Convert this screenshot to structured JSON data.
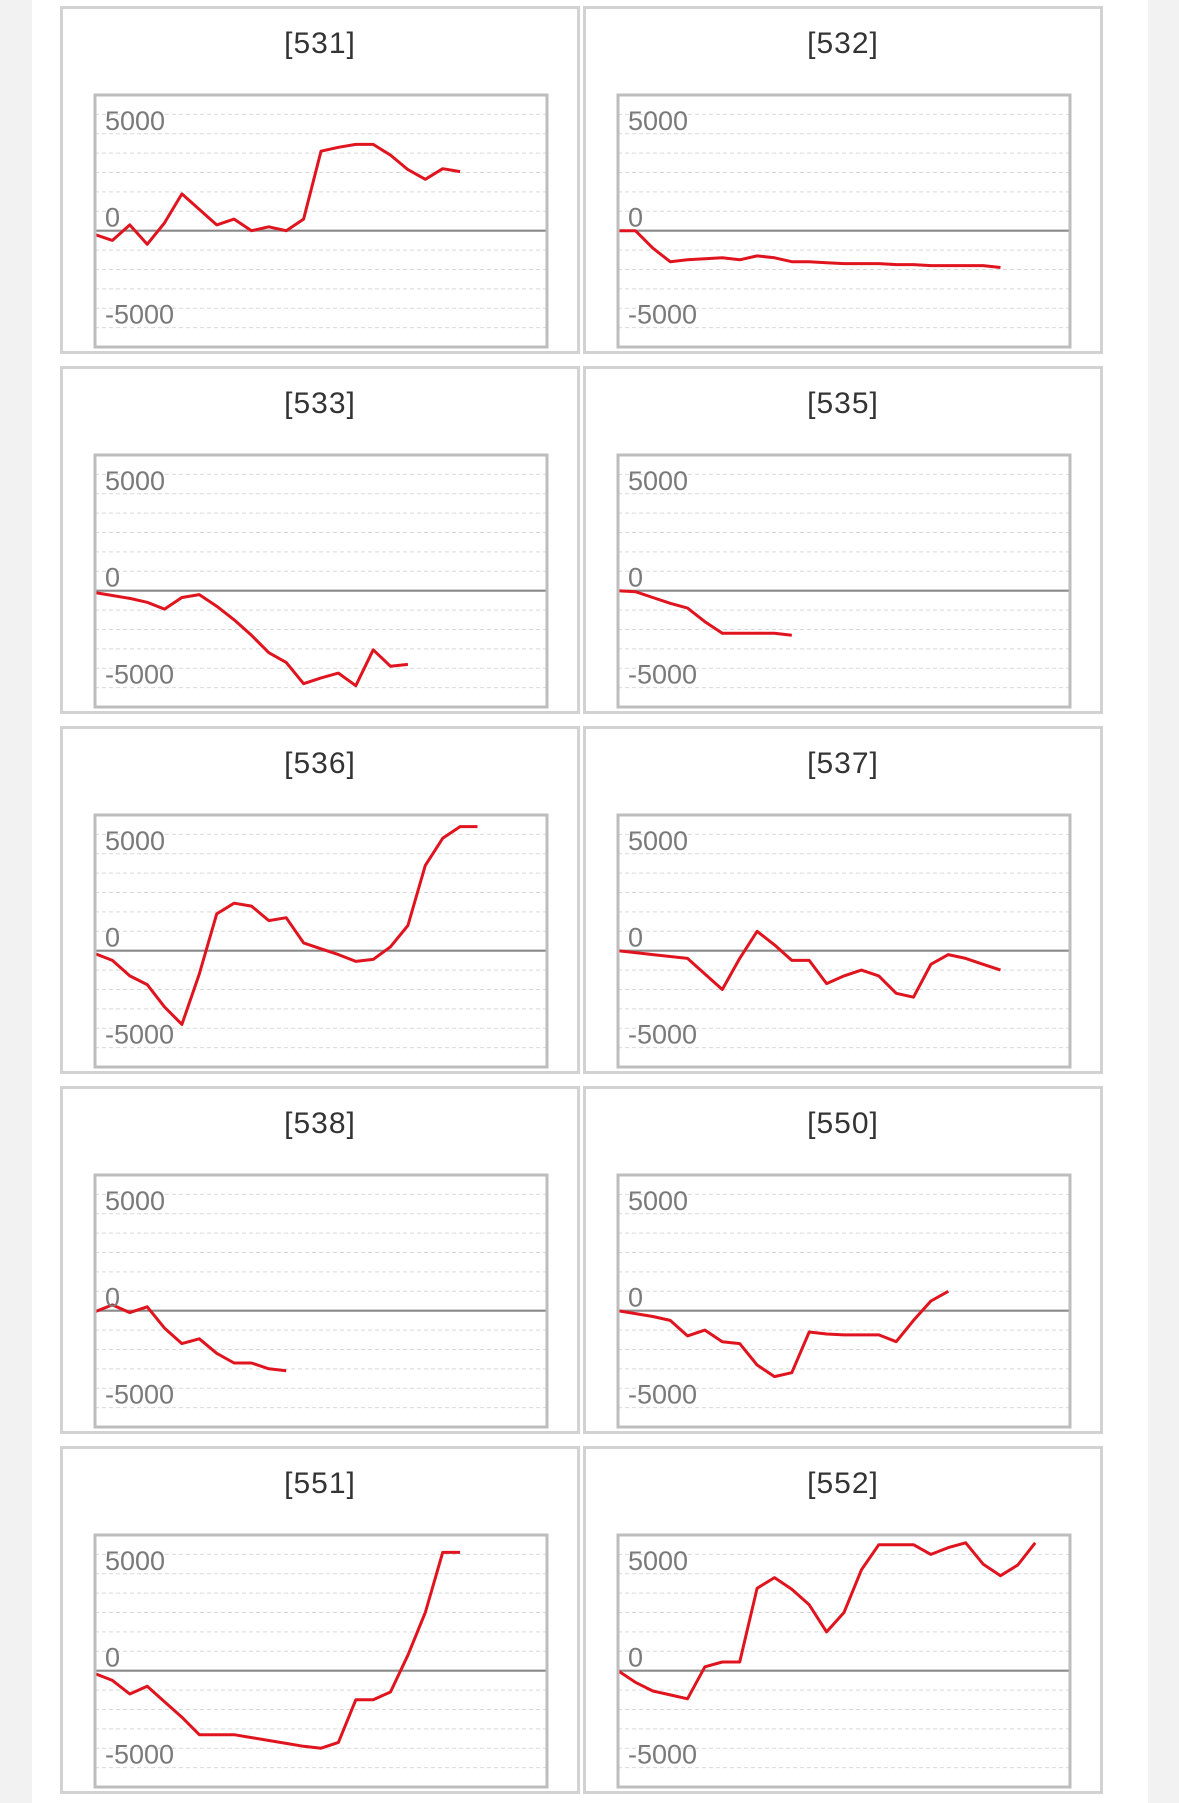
{
  "colors": {
    "line": "#e0141e",
    "zero_line": "#8a8a8a",
    "grid": "#d9d9d9",
    "frame": "#bdbdbd",
    "tick_text": "#7a7a7a"
  },
  "chart_data": [
    {
      "type": "line",
      "title": "[531]",
      "ylim": [
        -6000,
        7000
      ],
      "yticks": [
        5000,
        0,
        -5000
      ],
      "y_tick_labels": [
        "5000",
        "0",
        "-5000"
      ],
      "grid": true,
      "x": [
        0,
        1,
        2,
        3,
        4,
        5,
        6,
        7,
        8,
        9,
        10,
        11,
        12,
        13,
        14,
        15,
        16,
        17,
        18,
        19,
        20,
        21,
        22,
        23,
        24,
        25,
        26
      ],
      "values": [
        -200,
        -500,
        300,
        -700,
        400,
        1900,
        1100,
        300,
        600,
        0,
        200,
        0,
        600,
        4100,
        4300,
        4450,
        4450,
        3900,
        3150,
        2650,
        3200,
        3050,
        null,
        null,
        null,
        null,
        null
      ]
    },
    {
      "type": "line",
      "title": "[532]",
      "ylim": [
        -6000,
        7000
      ],
      "yticks": [
        5000,
        0,
        -5000
      ],
      "y_tick_labels": [
        "5000",
        "0",
        "-5000"
      ],
      "grid": true,
      "x": [
        0,
        1,
        2,
        3,
        4,
        5,
        6,
        7,
        8,
        9,
        10,
        11,
        12,
        13,
        14,
        15,
        16,
        17,
        18,
        19,
        20,
        21,
        22,
        23,
        24,
        25,
        26
      ],
      "values": [
        0,
        0,
        -900,
        -1600,
        -1500,
        -1450,
        -1400,
        -1500,
        -1300,
        -1400,
        -1600,
        -1600,
        -1650,
        -1700,
        -1700,
        -1700,
        -1750,
        -1750,
        -1800,
        -1800,
        -1800,
        -1800,
        -1900,
        null,
        null,
        null,
        null
      ]
    },
    {
      "type": "line",
      "title": "[533]",
      "ylim": [
        -6000,
        7000
      ],
      "yticks": [
        5000,
        0,
        -5000
      ],
      "y_tick_labels": [
        "5000",
        "0",
        "-5000"
      ],
      "grid": true,
      "x": [
        0,
        1,
        2,
        3,
        4,
        5,
        6,
        7,
        8,
        9,
        10,
        11,
        12,
        13,
        14,
        15,
        16,
        17,
        18,
        19,
        20,
        21,
        22,
        23,
        24,
        25,
        26
      ],
      "values": [
        -100,
        -250,
        -400,
        -600,
        -950,
        -350,
        -200,
        -800,
        -1500,
        -2300,
        -3200,
        -3700,
        -4800,
        -4500,
        -4250,
        -4900,
        -3050,
        -3900,
        -3800,
        null,
        null,
        null,
        null,
        null,
        null,
        null,
        null
      ]
    },
    {
      "type": "line",
      "title": "[535]",
      "ylim": [
        -6000,
        7000
      ],
      "yticks": [
        5000,
        0,
        -5000
      ],
      "y_tick_labels": [
        "5000",
        "0",
        "-5000"
      ],
      "grid": true,
      "x": [
        0,
        1,
        2,
        3,
        4,
        5,
        6,
        7,
        8,
        9,
        10,
        11,
        12,
        13,
        14,
        15,
        16,
        17,
        18,
        19,
        20,
        21,
        22,
        23,
        24,
        25,
        26
      ],
      "values": [
        0,
        -50,
        -350,
        -650,
        -900,
        -1600,
        -2200,
        -2200,
        -2200,
        -2200,
        -2300,
        null,
        null,
        null,
        null,
        null,
        null,
        null,
        null,
        null,
        null,
        null,
        null,
        null,
        null,
        null,
        null
      ]
    },
    {
      "type": "line",
      "title": "[536]",
      "ylim": [
        -6000,
        7000
      ],
      "yticks": [
        5000,
        0,
        -5000
      ],
      "y_tick_labels": [
        "5000",
        "0",
        "-5000"
      ],
      "grid": true,
      "x": [
        0,
        1,
        2,
        3,
        4,
        5,
        6,
        7,
        8,
        9,
        10,
        11,
        12,
        13,
        14,
        15,
        16,
        17,
        18,
        19,
        20,
        21,
        22,
        23,
        24,
        25,
        26
      ],
      "values": [
        -150,
        -500,
        -1300,
        -1750,
        -2900,
        -3800,
        -1200,
        1900,
        2450,
        2300,
        1550,
        1700,
        400,
        100,
        -200,
        -550,
        -450,
        200,
        1300,
        4400,
        5800,
        6400,
        6400,
        null,
        null,
        null,
        null
      ]
    },
    {
      "type": "line",
      "title": "[537]",
      "ylim": [
        -6000,
        7000
      ],
      "yticks": [
        5000,
        0,
        -5000
      ],
      "y_tick_labels": [
        "5000",
        "0",
        "-5000"
      ],
      "grid": true,
      "x": [
        0,
        1,
        2,
        3,
        4,
        5,
        6,
        7,
        8,
        9,
        10,
        11,
        12,
        13,
        14,
        15,
        16,
        17,
        18,
        19,
        20,
        21,
        22,
        23,
        24,
        25,
        26
      ],
      "values": [
        0,
        -100,
        -200,
        -300,
        -400,
        -1200,
        -2000,
        -400,
        1000,
        300,
        -500,
        -500,
        -1700,
        -1300,
        -1000,
        -1300,
        -2200,
        -2400,
        -700,
        -200,
        -400,
        -700,
        -1000,
        null,
        null,
        null,
        null
      ]
    },
    {
      "type": "line",
      "title": "[538]",
      "ylim": [
        -6000,
        7000
      ],
      "yticks": [
        5000,
        0,
        -5000
      ],
      "y_tick_labels": [
        "5000",
        "0",
        "-5000"
      ],
      "grid": true,
      "x": [
        0,
        1,
        2,
        3,
        4,
        5,
        6,
        7,
        8,
        9,
        10,
        11,
        12,
        13,
        14,
        15,
        16,
        17,
        18,
        19,
        20,
        21,
        22,
        23,
        24,
        25,
        26
      ],
      "values": [
        -50,
        300,
        -100,
        200,
        -900,
        -1700,
        -1450,
        -2200,
        -2700,
        -2700,
        -3000,
        -3100,
        null,
        null,
        null,
        null,
        null,
        null,
        null,
        null,
        null,
        null,
        null,
        null,
        null,
        null,
        null
      ]
    },
    {
      "type": "line",
      "title": "[550]",
      "ylim": [
        -6000,
        7000
      ],
      "yticks": [
        5000,
        0,
        -5000
      ],
      "y_tick_labels": [
        "5000",
        "0",
        "-5000"
      ],
      "grid": true,
      "x": [
        0,
        1,
        2,
        3,
        4,
        5,
        6,
        7,
        8,
        9,
        10,
        11,
        12,
        13,
        14,
        15,
        16,
        17,
        18,
        19,
        20,
        21,
        22,
        23,
        24,
        25,
        26
      ],
      "values": [
        0,
        -150,
        -300,
        -500,
        -1300,
        -1000,
        -1600,
        -1700,
        -2800,
        -3400,
        -3200,
        -1100,
        -1200,
        -1250,
        -1250,
        -1250,
        -1600,
        -500,
        500,
        1000,
        null,
        null,
        null,
        null,
        null,
        null,
        null
      ]
    },
    {
      "type": "line",
      "title": "[551]",
      "ylim": [
        -6000,
        7000
      ],
      "yticks": [
        5000,
        0,
        -5000
      ],
      "y_tick_labels": [
        "5000",
        "0",
        "-5000"
      ],
      "grid": true,
      "x": [
        0,
        1,
        2,
        3,
        4,
        5,
        6,
        7,
        8,
        9,
        10,
        11,
        12,
        13,
        14,
        15,
        16,
        17,
        18,
        19,
        20,
        21,
        22,
        23,
        24,
        25,
        26
      ],
      "values": [
        -150,
        -500,
        -1200,
        -800,
        -1600,
        -2400,
        -3300,
        -3300,
        -3300,
        -3450,
        -3600,
        -3750,
        -3900,
        -4000,
        -3700,
        -1500,
        -1500,
        -1100,
        800,
        3000,
        6100,
        6100,
        null,
        null,
        null,
        null,
        null
      ]
    },
    {
      "type": "line",
      "title": "[552]",
      "ylim": [
        -6000,
        7000
      ],
      "yticks": [
        5000,
        0,
        -5000
      ],
      "y_tick_labels": [
        "5000",
        "0",
        "-5000"
      ],
      "grid": true,
      "x": [
        0,
        1,
        2,
        3,
        4,
        5,
        6,
        7,
        8,
        9,
        10,
        11,
        12,
        13,
        14,
        15,
        16,
        17,
        18,
        19,
        20,
        21,
        22,
        23,
        24,
        25,
        26
      ],
      "values": [
        0,
        -600,
        -1050,
        -1250,
        -1450,
        200,
        450,
        450,
        4250,
        4800,
        4200,
        3400,
        2000,
        3000,
        5200,
        6500,
        6500,
        6500,
        6000,
        6350,
        6600,
        5500,
        4900,
        5450,
        6600,
        null,
        null
      ]
    }
  ]
}
